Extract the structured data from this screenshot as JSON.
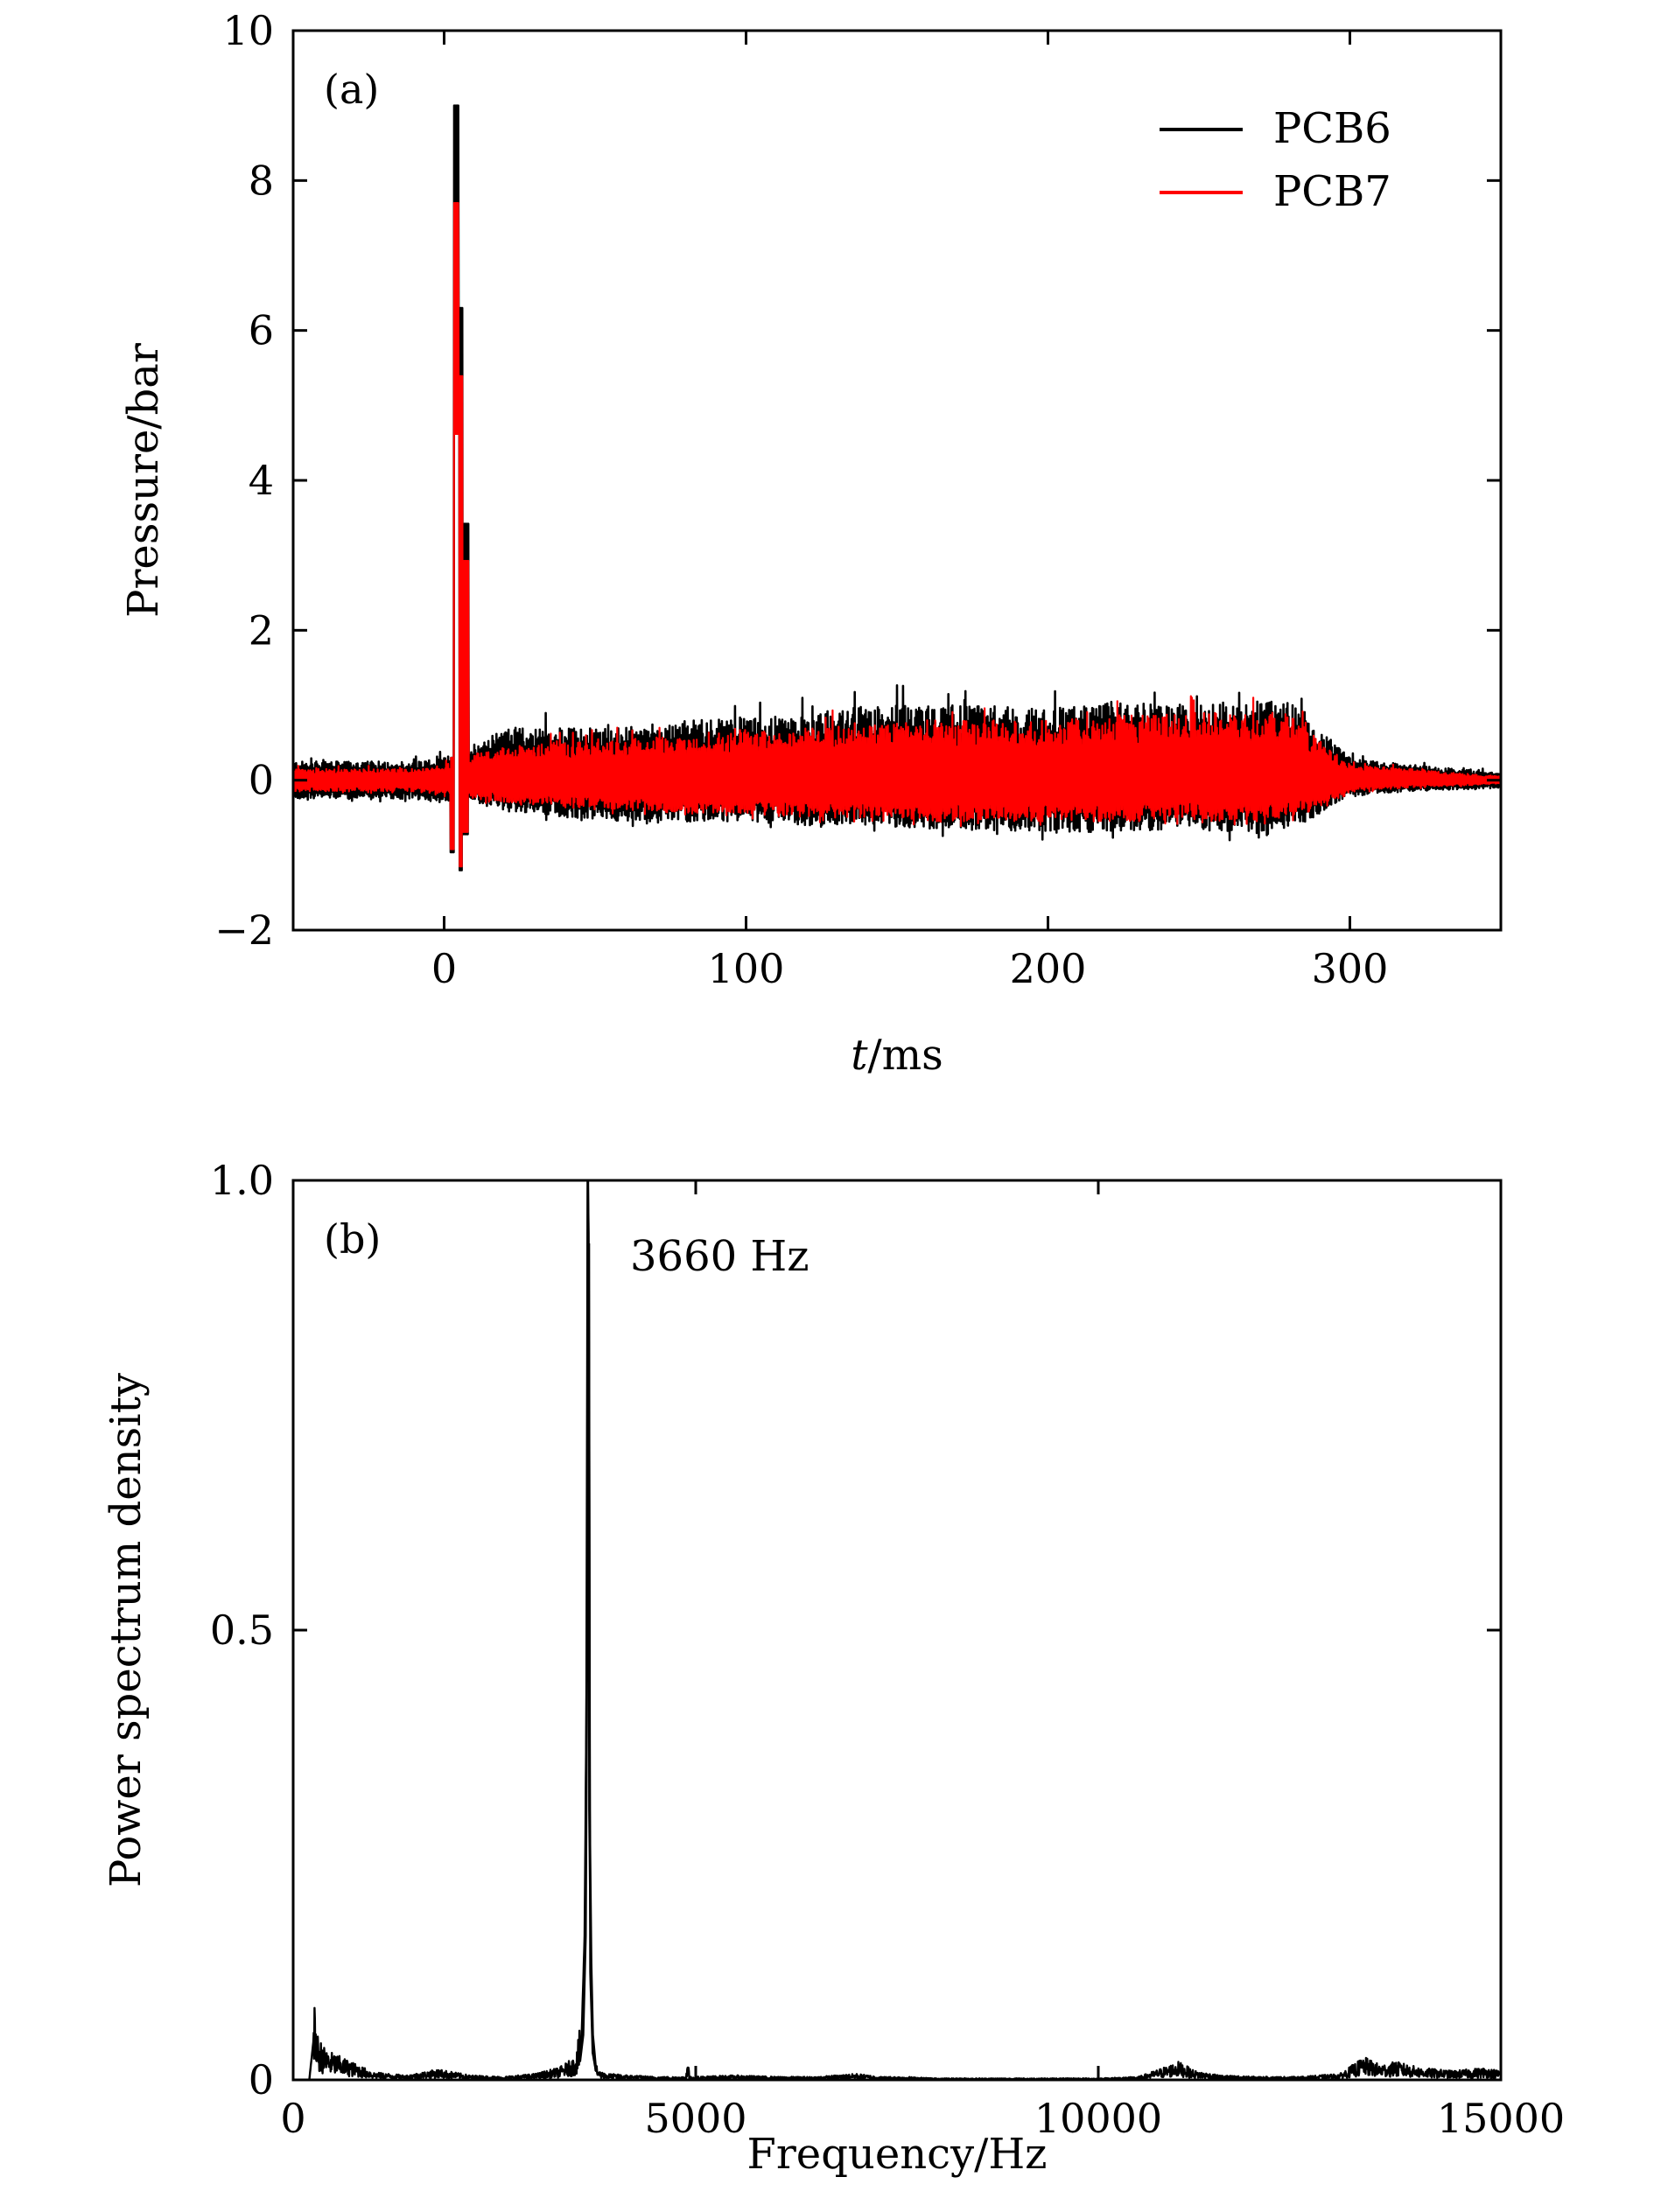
{
  "colors": {
    "pcb6": "#000000",
    "pcb7": "#ff0000",
    "axis": "#000000",
    "background": "#ffffff"
  },
  "chart_data": [
    {
      "type": "line",
      "panel_label": "(a)",
      "xlabel_italic": "t",
      "xlabel_unit": "/ms",
      "ylabel": "Pressure/bar",
      "xlim": [
        -50,
        350
      ],
      "ylim": [
        -2,
        10
      ],
      "xticks": [
        0,
        100,
        200,
        300
      ],
      "xtick_labels": [
        "0",
        "100",
        "200",
        "300"
      ],
      "yticks": [
        -2,
        0,
        2,
        4,
        6,
        8,
        10
      ],
      "ytick_labels": [
        "−2",
        "0",
        "2",
        "4",
        "6",
        "8",
        "10"
      ],
      "legend_position": "top-right",
      "series": [
        {
          "name": "PCB6",
          "color": "#000000",
          "peak": {
            "x": 4.5,
            "y": 9.0
          },
          "dip": {
            "x": 5,
            "y": -1.2
          },
          "envelope": {
            "x": [
              -50,
              -10,
              0,
              10,
              20,
              40,
              60,
              80,
              100,
              120,
              140,
              160,
              180,
              200,
              220,
              240,
              260,
              280,
              288,
              300,
              320,
              350
            ],
            "upper": [
              0.25,
              0.25,
              0.3,
              0.5,
              0.7,
              0.7,
              0.7,
              0.8,
              0.85,
              0.85,
              1.0,
              1.0,
              1.0,
              0.95,
              1.05,
              1.0,
              1.05,
              1.05,
              0.75,
              0.3,
              0.2,
              0.1
            ],
            "lower": [
              -0.25,
              -0.25,
              -0.3,
              -0.3,
              -0.4,
              -0.5,
              -0.55,
              -0.55,
              -0.55,
              -0.6,
              -0.6,
              -0.65,
              -0.65,
              -0.7,
              -0.7,
              -0.65,
              -0.7,
              -0.65,
              -0.5,
              -0.2,
              -0.15,
              -0.1
            ]
          }
        },
        {
          "name": "PCB7",
          "color": "#ff0000",
          "peak": {
            "x": 4.5,
            "y": 7.7
          },
          "dip": {
            "x": 5,
            "y": -1.15
          },
          "envelope": {
            "x": [
              -50,
              -10,
              0,
              10,
              20,
              40,
              60,
              80,
              100,
              120,
              140,
              160,
              180,
              200,
              220,
              240,
              260,
              280,
              288,
              300,
              320,
              350
            ],
            "upper": [
              0.15,
              0.15,
              0.2,
              0.35,
              0.45,
              0.5,
              0.55,
              0.6,
              0.65,
              0.7,
              0.75,
              0.8,
              0.8,
              0.8,
              0.85,
              0.9,
              0.9,
              0.9,
              0.6,
              0.2,
              0.15,
              0.05
            ],
            "lower": [
              -0.15,
              -0.15,
              -0.2,
              -0.25,
              -0.3,
              -0.35,
              -0.4,
              -0.45,
              -0.45,
              -0.5,
              -0.5,
              -0.55,
              -0.55,
              -0.55,
              -0.55,
              -0.5,
              -0.55,
              -0.5,
              -0.4,
              -0.15,
              -0.1,
              -0.05
            ]
          }
        }
      ]
    },
    {
      "type": "line",
      "panel_label": "(b)",
      "xlabel": "Frequency/Hz",
      "ylabel": "Power spectrum density",
      "xlim": [
        0,
        15000
      ],
      "ylim": [
        0,
        1.0
      ],
      "xticks": [
        0,
        5000,
        10000,
        15000
      ],
      "xtick_labels": [
        "0",
        "5000",
        "10000",
        "15000"
      ],
      "yticks": [
        0,
        0.5,
        1.0
      ],
      "ytick_labels": [
        "0",
        "0.5",
        "1.0"
      ],
      "annotation": "3660 Hz",
      "series": [
        {
          "name": "",
          "color": "#000000",
          "x": [
            0,
            200,
            260,
            300,
            400,
            600,
            800,
            1000,
            1400,
            1800,
            2200,
            2600,
            3000,
            3300,
            3500,
            3580,
            3620,
            3650,
            3660,
            3672,
            3690,
            3720,
            3760,
            3800,
            3900,
            4200,
            4500,
            4880,
            4900,
            4920,
            5500,
            6000,
            6500,
            7000,
            7300,
            7600,
            8000,
            9000,
            10000,
            10500,
            10800,
            11000,
            11200,
            11500,
            12000,
            12500,
            13000,
            13300,
            13500,
            13700,
            14000,
            14400,
            14800,
            15000
          ],
          "y": [
            0.0,
            0.0,
            0.05,
            0.03,
            0.02,
            0.015,
            0.01,
            0.005,
            0.003,
            0.007,
            0.003,
            0.002,
            0.004,
            0.008,
            0.015,
            0.04,
            0.16,
            0.5,
            1.0,
            0.93,
            0.12,
            0.03,
            0.01,
            0.006,
            0.004,
            0.003,
            0.002,
            0.002,
            0.02,
            0.002,
            0.003,
            0.002,
            0.002,
            0.004,
            0.002,
            0.002,
            0.001,
            0.001,
            0.001,
            0.002,
            0.008,
            0.012,
            0.006,
            0.003,
            0.002,
            0.002,
            0.004,
            0.015,
            0.01,
            0.012,
            0.008,
            0.006,
            0.008,
            0.006
          ]
        }
      ]
    }
  ]
}
